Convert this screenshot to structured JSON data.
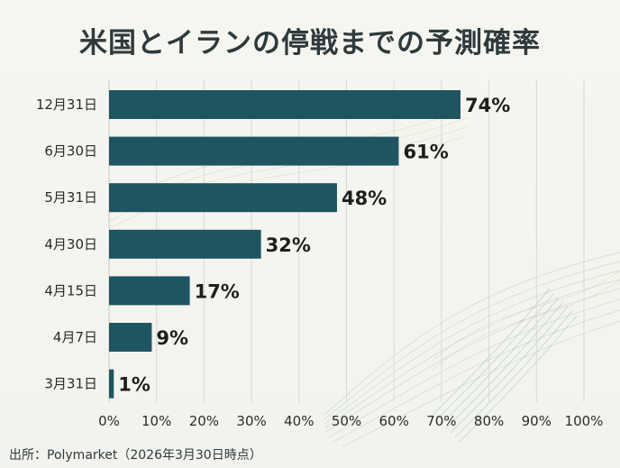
{
  "chart_data": {
    "type": "bar",
    "orientation": "horizontal",
    "title": "米国とイランの停戦までの予測確率",
    "categories": [
      "12月31日",
      "6月30日",
      "5月31日",
      "4月30日",
      "4月15日",
      "4月7日",
      "3月31日"
    ],
    "values": [
      74,
      61,
      48,
      32,
      17,
      9,
      1
    ],
    "data_labels": [
      "74%",
      "61%",
      "48%",
      "32%",
      "17%",
      "9%",
      "1%"
    ],
    "xlim": [
      0,
      100
    ],
    "xticks": [
      0,
      10,
      20,
      30,
      40,
      50,
      60,
      70,
      80,
      90,
      100
    ],
    "xtick_labels": [
      "0%",
      "10%",
      "20%",
      "30%",
      "40%",
      "50%",
      "60%",
      "70%",
      "80%",
      "90%",
      "100%"
    ],
    "xlabel": "",
    "ylabel": "",
    "grid": true,
    "bar_color": "#1f5561",
    "source": "出所：Polymarket（2026年3月30日時点）"
  }
}
